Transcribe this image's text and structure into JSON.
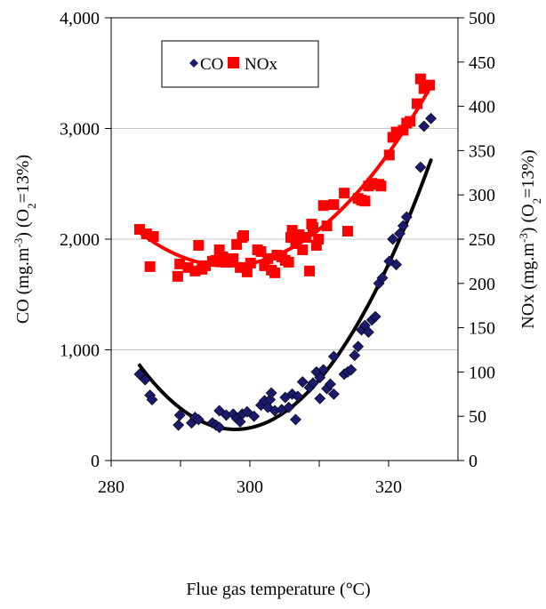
{
  "chart_data": {
    "type": "scatter",
    "xlabel": "Flue gas temperature (°C)",
    "ylabel_left": {
      "pre": "CO (mg.m",
      "sup": "-3",
      "mid": ") (O",
      "sub": "2",
      "post": "=13%)"
    },
    "ylabel_right": {
      "pre": "NOx (mg.m",
      "sup": "-3",
      "mid": ") (O",
      "sub": "2",
      "post": "=13%)"
    },
    "xlim": [
      280,
      330
    ],
    "ylim_left": [
      0,
      4000
    ],
    "ylim_right": [
      0,
      500
    ],
    "x_ticks": [
      "280",
      "300",
      "320"
    ],
    "y_left_ticks": [
      "0",
      "1,000",
      "2,000",
      "3,000",
      "4,000"
    ],
    "y_right_ticks": [
      "0",
      "50",
      "100",
      "150",
      "200",
      "250",
      "300",
      "350",
      "400",
      "450",
      "500"
    ],
    "grid": "horizontal",
    "legend_position": "top-left",
    "legend": [
      {
        "label": "CO",
        "marker": "diamond",
        "color": "#1a1a6e"
      },
      {
        "label": "NOx",
        "marker": "square",
        "color": "#ff0000"
      }
    ],
    "colors": {
      "co_marker": "#1a1a6e",
      "co_trend": "#000000",
      "nox": "#ff0000",
      "grid": "#c8c8c8"
    },
    "series": [
      {
        "name": "CO",
        "axis": "left",
        "marker": "diamond",
        "points": [
          [
            284.1,
            780
          ],
          [
            284.9,
            730
          ],
          [
            285.6,
            590
          ],
          [
            285.9,
            550
          ],
          [
            289.7,
            320
          ],
          [
            289.9,
            410
          ],
          [
            291.6,
            340
          ],
          [
            292.1,
            390
          ],
          [
            292.6,
            370
          ],
          [
            294.6,
            340
          ],
          [
            295.1,
            320
          ],
          [
            295.6,
            300
          ],
          [
            295.6,
            450
          ],
          [
            296.6,
            410
          ],
          [
            297.6,
            420
          ],
          [
            298.1,
            380
          ],
          [
            298.6,
            350
          ],
          [
            298.9,
            420
          ],
          [
            299.6,
            440
          ],
          [
            300.6,
            400
          ],
          [
            301.6,
            500
          ],
          [
            302.1,
            540
          ],
          [
            302.6,
            480
          ],
          [
            302.9,
            550
          ],
          [
            303.1,
            610
          ],
          [
            303.6,
            450
          ],
          [
            304.6,
            460
          ],
          [
            305.1,
            570
          ],
          [
            305.6,
            480
          ],
          [
            306.1,
            600
          ],
          [
            306.6,
            370
          ],
          [
            306.9,
            580
          ],
          [
            307.6,
            710
          ],
          [
            308.6,
            660
          ],
          [
            309.1,
            700
          ],
          [
            309.6,
            800
          ],
          [
            310.1,
            750
          ],
          [
            310.1,
            560
          ],
          [
            310.6,
            820
          ],
          [
            311.1,
            650
          ],
          [
            311.6,
            690
          ],
          [
            312.1,
            940
          ],
          [
            312.1,
            600
          ],
          [
            313.6,
            780
          ],
          [
            314.1,
            800
          ],
          [
            314.6,
            820
          ],
          [
            315.1,
            950
          ],
          [
            315.6,
            1030
          ],
          [
            316.1,
            1180
          ],
          [
            316.6,
            1220
          ],
          [
            317.1,
            1160
          ],
          [
            317.6,
            1270
          ],
          [
            318.1,
            1300
          ],
          [
            318.6,
            1600
          ],
          [
            319.1,
            1650
          ],
          [
            320.1,
            1800
          ],
          [
            320.6,
            2000
          ],
          [
            321.1,
            1770
          ],
          [
            321.6,
            2050
          ],
          [
            322.1,
            2120
          ],
          [
            322.6,
            2200
          ],
          [
            324.6,
            2650
          ],
          [
            325.1,
            3020
          ],
          [
            326.1,
            3090
          ]
        ],
        "trend": {
          "type": "polynomial-2",
          "color": "#000000"
        }
      },
      {
        "name": "NOx",
        "axis": "right",
        "marker": "square",
        "points": [
          [
            284.1,
            261
          ],
          [
            285.1,
            256
          ],
          [
            285.6,
            219
          ],
          [
            286.1,
            253
          ],
          [
            289.6,
            208
          ],
          [
            289.9,
            222
          ],
          [
            291.1,
            218
          ],
          [
            292.1,
            214
          ],
          [
            292.6,
            243
          ],
          [
            293.1,
            216
          ],
          [
            293.6,
            220
          ],
          [
            294.6,
            225
          ],
          [
            295.1,
            226
          ],
          [
            295.6,
            238
          ],
          [
            296.1,
            230
          ],
          [
            296.6,
            224
          ],
          [
            297.6,
            228
          ],
          [
            298.1,
            244
          ],
          [
            298.6,
            218
          ],
          [
            298.9,
            252
          ],
          [
            299.1,
            254
          ],
          [
            299.6,
            213
          ],
          [
            300.1,
            223
          ],
          [
            301.1,
            238
          ],
          [
            301.6,
            236
          ],
          [
            302.1,
            220
          ],
          [
            302.6,
            228
          ],
          [
            303.1,
            215
          ],
          [
            303.6,
            212
          ],
          [
            303.9,
            232
          ],
          [
            304.6,
            230
          ],
          [
            305.1,
            226
          ],
          [
            305.6,
            224
          ],
          [
            305.9,
            252
          ],
          [
            306.1,
            260
          ],
          [
            306.6,
            245
          ],
          [
            307.1,
            255
          ],
          [
            307.6,
            238
          ],
          [
            308.1,
            252
          ],
          [
            308.6,
            214
          ],
          [
            308.9,
            267
          ],
          [
            309.1,
            263
          ],
          [
            309.6,
            243
          ],
          [
            309.9,
            250
          ],
          [
            310.6,
            288
          ],
          [
            311.1,
            265
          ],
          [
            312.1,
            289
          ],
          [
            313.6,
            302
          ],
          [
            314.1,
            259
          ],
          [
            315.6,
            296
          ],
          [
            316.1,
            294
          ],
          [
            316.6,
            293
          ],
          [
            317.1,
            310
          ],
          [
            317.6,
            313
          ],
          [
            318.6,
            312
          ],
          [
            318.9,
            310
          ],
          [
            320.1,
            345
          ],
          [
            320.6,
            365
          ],
          [
            321.1,
            371
          ],
          [
            322.1,
            373
          ],
          [
            322.6,
            381
          ],
          [
            323.1,
            383
          ],
          [
            324.1,
            403
          ],
          [
            324.6,
            431
          ],
          [
            325.1,
            420
          ],
          [
            325.9,
            424
          ]
        ],
        "trend": {
          "type": "polynomial-2",
          "color": "#ff0000"
        }
      }
    ]
  }
}
